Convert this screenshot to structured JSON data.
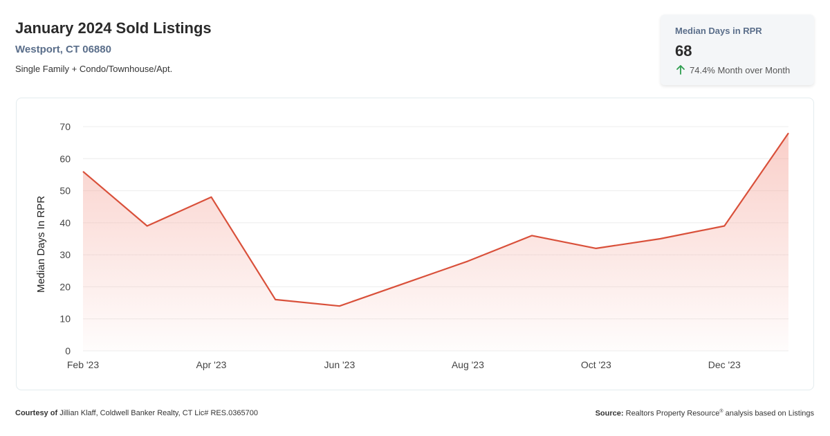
{
  "header": {
    "title": "January 2024 Sold Listings",
    "location": "Westport, CT 06880",
    "property_types": "Single Family + Condo/Townhouse/Apt."
  },
  "kpi": {
    "label": "Median Days in RPR",
    "value": "68",
    "change_text": "74.4% Month over Month",
    "change_icon": "arrow-up-icon",
    "change_color": "#2e9e4f"
  },
  "chart_data": {
    "type": "area",
    "title": "",
    "xlabel": "",
    "ylabel": "Median Days In RPR",
    "x": [
      "Feb '23",
      "Mar '23",
      "Apr '23",
      "May '23",
      "Jun '23",
      "Jul '23",
      "Aug '23",
      "Sep '23",
      "Oct '23",
      "Nov '23",
      "Dec '23",
      "Jan '24"
    ],
    "x_tick_labels": [
      "Feb '23",
      "Apr '23",
      "Jun '23",
      "Aug '23",
      "Oct '23",
      "Dec '23"
    ],
    "series": [
      {
        "values": [
          56,
          39,
          48,
          16,
          14,
          21,
          28,
          36,
          32,
          35,
          39,
          68
        ]
      }
    ],
    "ylim": [
      0,
      70
    ],
    "yticks": [
      0,
      10,
      20,
      30,
      40,
      50,
      60,
      70
    ],
    "grid": true,
    "line_color": "#d9503a",
    "fill_color": "#f4a79c"
  },
  "footer": {
    "courtesy_label": "Courtesy of",
    "courtesy_text": "Jillian Klaff, Coldwell Banker Realty, CT Lic# RES.0365700",
    "source_label": "Source:",
    "source_text_1": "Realtors Property Resource",
    "source_reg": "®",
    "source_text_2": " analysis based on Listings"
  }
}
